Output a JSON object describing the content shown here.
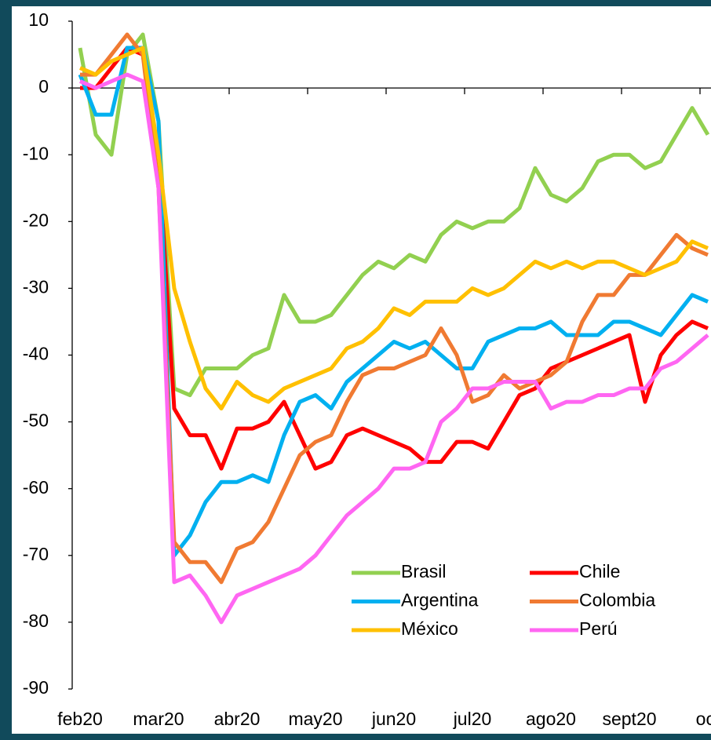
{
  "chart_data": {
    "type": "line",
    "categories": [
      "feb20",
      null,
      null,
      null,
      null,
      "mar20",
      null,
      null,
      null,
      null,
      "abr20",
      null,
      null,
      null,
      null,
      "may20",
      null,
      null,
      null,
      null,
      "jun20",
      null,
      null,
      null,
      null,
      "jul20",
      null,
      null,
      null,
      null,
      "ago20",
      null,
      null,
      null,
      null,
      "sept20",
      null,
      null,
      null,
      null,
      "oct"
    ],
    "series": [
      {
        "name": "Brasil",
        "color": "#92D050",
        "values": [
          6,
          -7,
          -10,
          5,
          8,
          -5,
          -45,
          -46,
          -42,
          -42,
          -42,
          -40,
          -39,
          -31,
          -35,
          -35,
          -34,
          -31,
          -28,
          -26,
          -27,
          -25,
          -26,
          -22,
          -20,
          -21,
          -20,
          -20,
          -18,
          -12,
          -16,
          -17,
          -15,
          -11,
          -10,
          -10,
          -12,
          -11,
          -7,
          -3,
          -7
        ]
      },
      {
        "name": "Chile",
        "color": "#FF0000",
        "values": [
          0,
          0,
          3,
          6,
          5,
          -10,
          -48,
          -52,
          -52,
          -57,
          -51,
          -51,
          -50,
          -47,
          -52,
          -57,
          -56,
          -52,
          -51,
          -52,
          -53,
          -54,
          -56,
          -56,
          -53,
          -53,
          -54,
          -50,
          -46,
          -45,
          -42,
          -41,
          -40,
          -39,
          -38,
          -37,
          -47,
          -40,
          -37,
          -35,
          -36
        ]
      },
      {
        "name": "Argentina",
        "color": "#00B0F0",
        "values": [
          2,
          -4,
          -4,
          6,
          6,
          -5,
          -70,
          -67,
          -62,
          -59,
          -59,
          -58,
          -59,
          -52,
          -47,
          -46,
          -48,
          -44,
          -42,
          -40,
          -38,
          -39,
          -38,
          -40,
          -42,
          -42,
          -38,
          -37,
          -36,
          -36,
          -35,
          -37,
          -37,
          -37,
          -35,
          -35,
          -36,
          -37,
          -34,
          -31,
          -32
        ]
      },
      {
        "name": "Colombia",
        "color": "#F07A32",
        "values": [
          2,
          2,
          5,
          8,
          5,
          -15,
          -68,
          -71,
          -71,
          -74,
          -69,
          -68,
          -65,
          -60,
          -55,
          -53,
          -52,
          -47,
          -43,
          -42,
          -42,
          -41,
          -40,
          -36,
          -40,
          -47,
          -46,
          -43,
          -45,
          -44,
          -43,
          -41,
          -35,
          -31,
          -31,
          -28,
          -28,
          -25,
          -22,
          -24,
          -25
        ]
      },
      {
        "name": "México",
        "color": "#FFC000",
        "values": [
          3,
          2,
          4,
          5,
          6,
          -10,
          -30,
          -38,
          -45,
          -48,
          -44,
          -46,
          -47,
          -45,
          -44,
          -43,
          -42,
          -39,
          -38,
          -36,
          -33,
          -34,
          -32,
          -32,
          -32,
          -30,
          -31,
          -30,
          -28,
          -26,
          -27,
          -26,
          -27,
          -26,
          -26,
          -27,
          -28,
          -27,
          -26,
          -23,
          -24
        ]
      },
      {
        "name": "Perú",
        "color": "#FF66F2",
        "values": [
          1,
          0,
          1,
          2,
          1,
          -15,
          -74,
          -73,
          -76,
          -80,
          -76,
          -75,
          -74,
          -73,
          -72,
          -70,
          -67,
          -64,
          -62,
          -60,
          -57,
          -57,
          -56,
          -50,
          -48,
          -45,
          -45,
          -44,
          -44,
          -44,
          -48,
          -47,
          -47,
          -46,
          -46,
          -45,
          -45,
          -42,
          -41,
          -39,
          -37
        ]
      }
    ],
    "ylim": [
      -90,
      10
    ],
    "yticks": [
      10,
      0,
      -10,
      -20,
      -30,
      -40,
      -50,
      -60,
      -70,
      -80,
      -90
    ],
    "legend": "lower right"
  }
}
